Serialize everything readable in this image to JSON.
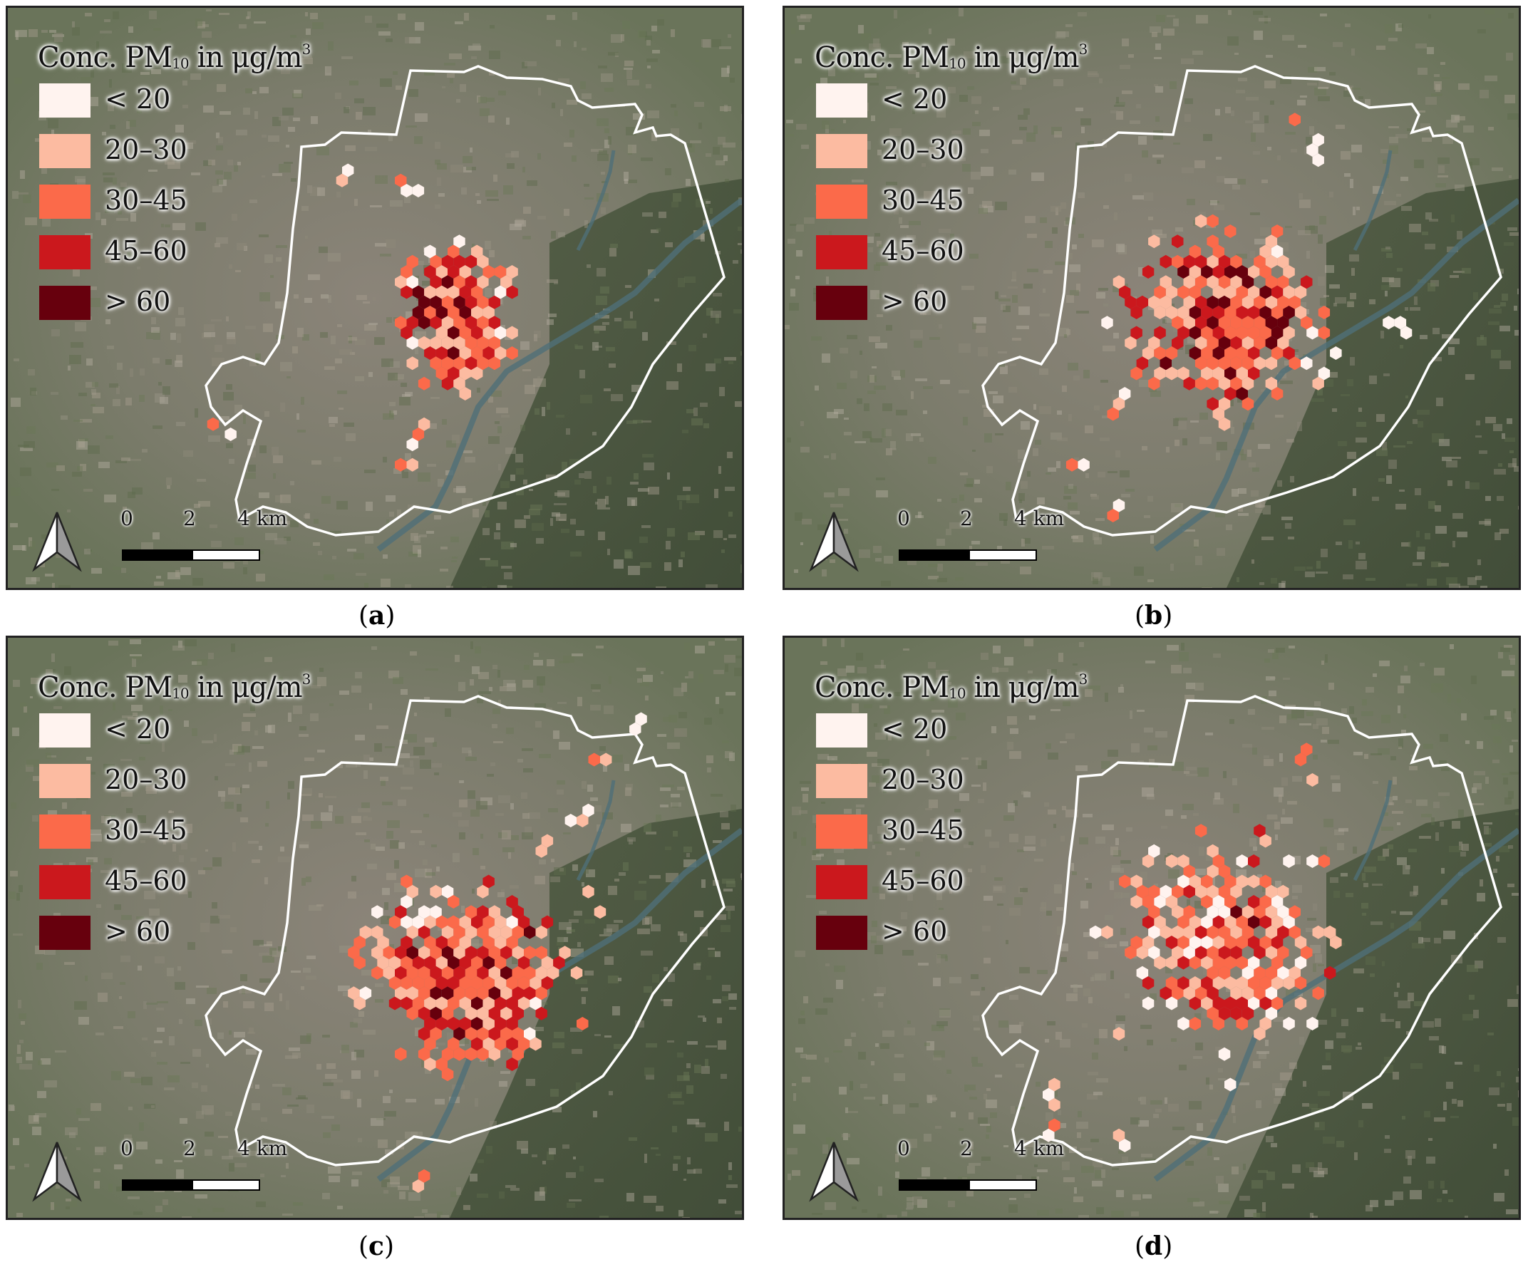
{
  "legend": {
    "title_prefix": "Conc. PM",
    "title_sub": "10",
    "title_mid": " in μg/m",
    "title_sup": "3",
    "classes": [
      {
        "label": "< 20",
        "color": "#fff3ef"
      },
      {
        "label": "20–30",
        "color": "#fcbba1"
      },
      {
        "label": "30–45",
        "color": "#fb6a4a"
      },
      {
        "label": "45–60",
        "color": "#cb181d"
      },
      {
        "label": "> 60",
        "color": "#67000d"
      }
    ]
  },
  "scale": {
    "tick0": "0",
    "tick1": "2",
    "tick2": "4 km"
  },
  "panels": [
    {
      "caption_open": "(",
      "caption_letter": "a",
      "caption_close": ")"
    },
    {
      "caption_open": "(",
      "caption_letter": "b",
      "caption_close": ")"
    },
    {
      "caption_open": "(",
      "caption_letter": "c",
      "caption_close": ")"
    },
    {
      "caption_open": "(",
      "caption_letter": "d",
      "caption_close": ")"
    }
  ]
}
